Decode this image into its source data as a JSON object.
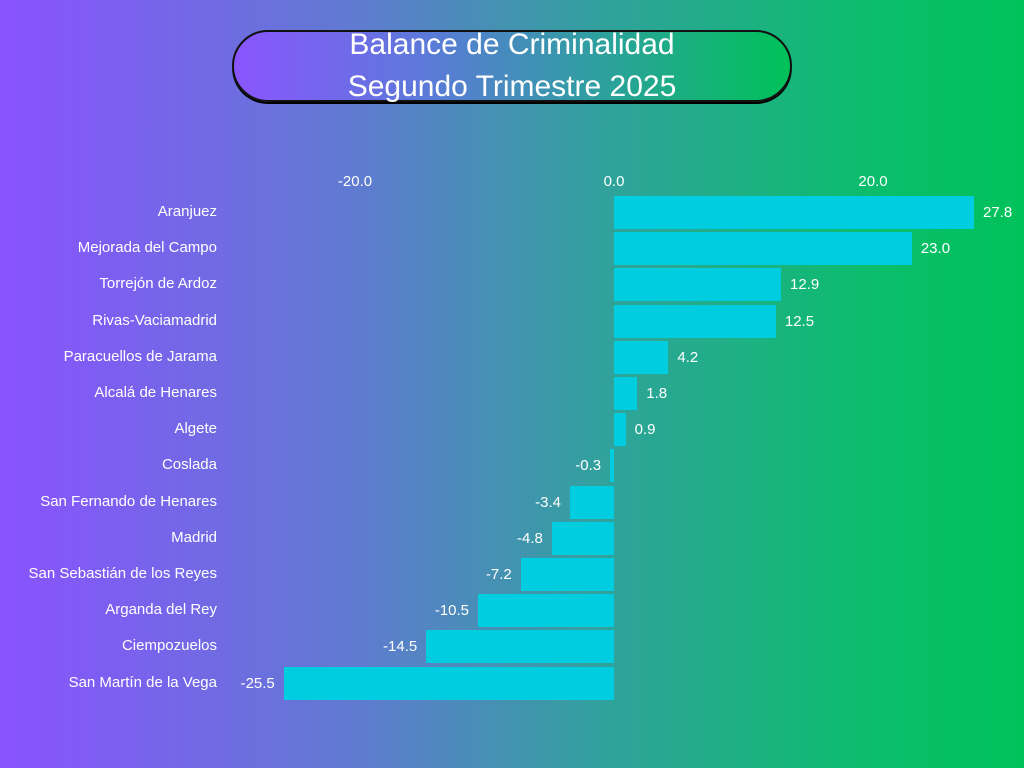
{
  "chart_data": {
    "type": "bar",
    "orientation": "horizontal",
    "title": "Balance de Criminalidad",
    "subtitle": "Segundo Trimestre 2025",
    "xlabel": "",
    "ylabel": "",
    "xlim": [
      -25.5,
      27.8
    ],
    "xticks": [
      {
        "value": -20,
        "label": "-20.0"
      },
      {
        "value": 0,
        "label": "0.0"
      },
      {
        "value": 20,
        "label": "20.0"
      }
    ],
    "grid": false,
    "bar_color": "#00cde0",
    "categories": [
      "Aranjuez",
      "Mejorada del Campo",
      "Torrejón de Ardoz",
      "Rivas-Vaciamadrid",
      "Paracuellos de Jarama",
      "Alcalá de Henares",
      "Algete",
      "Coslada",
      "San Fernando de Henares",
      "Madrid",
      "San Sebastián de los Reyes",
      "Arganda del Rey",
      "Ciempozuelos",
      "San Martín de la Vega"
    ],
    "values": [
      27.8,
      23.0,
      12.9,
      12.5,
      4.2,
      1.8,
      0.9,
      -0.3,
      -3.4,
      -4.8,
      -7.2,
      -10.5,
      -14.5,
      -25.5
    ],
    "value_labels": [
      "27.8",
      "23.0",
      "12.9",
      "12.5",
      "4.2",
      "1.8",
      "0.9",
      "-0.3",
      "-3.4",
      "-4.8",
      "-7.2",
      "-10.5",
      "-14.5",
      "-25.5"
    ]
  }
}
